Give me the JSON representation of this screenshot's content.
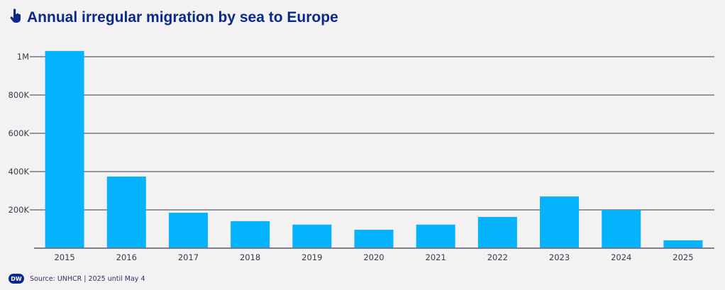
{
  "header": {
    "title": "Annual irregular migration by sea to Europe",
    "icon": "hand-pointer-icon"
  },
  "footer": {
    "source": "Source: UNHCR | 2025 until May 4",
    "logo_text": "DW"
  },
  "colors": {
    "bar": "#05b2fc",
    "title": "#0a2a8a",
    "grid": "#5a5f73"
  },
  "chart_data": {
    "type": "bar",
    "title": "Annual irregular migration by sea to Europe",
    "categories": [
      "2015",
      "2016",
      "2017",
      "2018",
      "2019",
      "2020",
      "2021",
      "2022",
      "2023",
      "2024",
      "2025"
    ],
    "values": [
      1030000,
      374000,
      185000,
      141000,
      123000,
      96000,
      123000,
      163000,
      270000,
      200000,
      41000
    ],
    "ylim": [
      0,
      1000000
    ],
    "yticks": [
      200000,
      400000,
      600000,
      800000,
      1000000
    ],
    "ytick_labels": [
      "200K",
      "400K",
      "600K",
      "800K",
      "1M"
    ],
    "xlabel": "",
    "ylabel": "",
    "grid": true
  }
}
